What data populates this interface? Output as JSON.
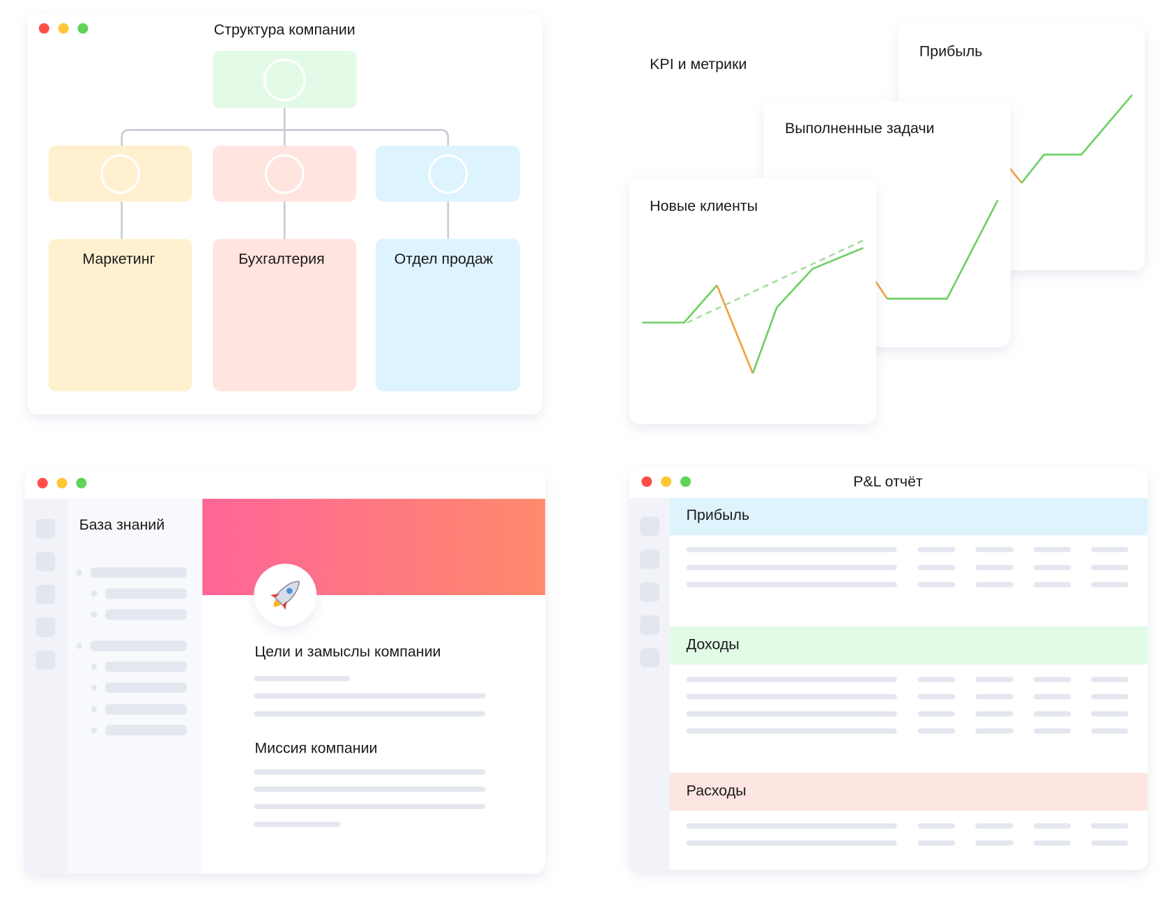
{
  "org_window": {
    "title": "Структура компании",
    "departments": [
      "Маркетинг",
      "Бухгалтерия",
      "Отдел продаж"
    ]
  },
  "kpi": {
    "title": "KPI и метрики",
    "cards": [
      "Прибыль",
      "Выполненные задачи",
      "Новые клиенты"
    ]
  },
  "knowledge_window": {
    "sidebar_title": "База знаний",
    "sections": [
      "Цели и замыслы компании",
      "Миссия компании"
    ]
  },
  "pl_window": {
    "title": "P&L отчёт",
    "sections": [
      "Прибыль",
      "Доходы",
      "Расходы"
    ]
  }
}
